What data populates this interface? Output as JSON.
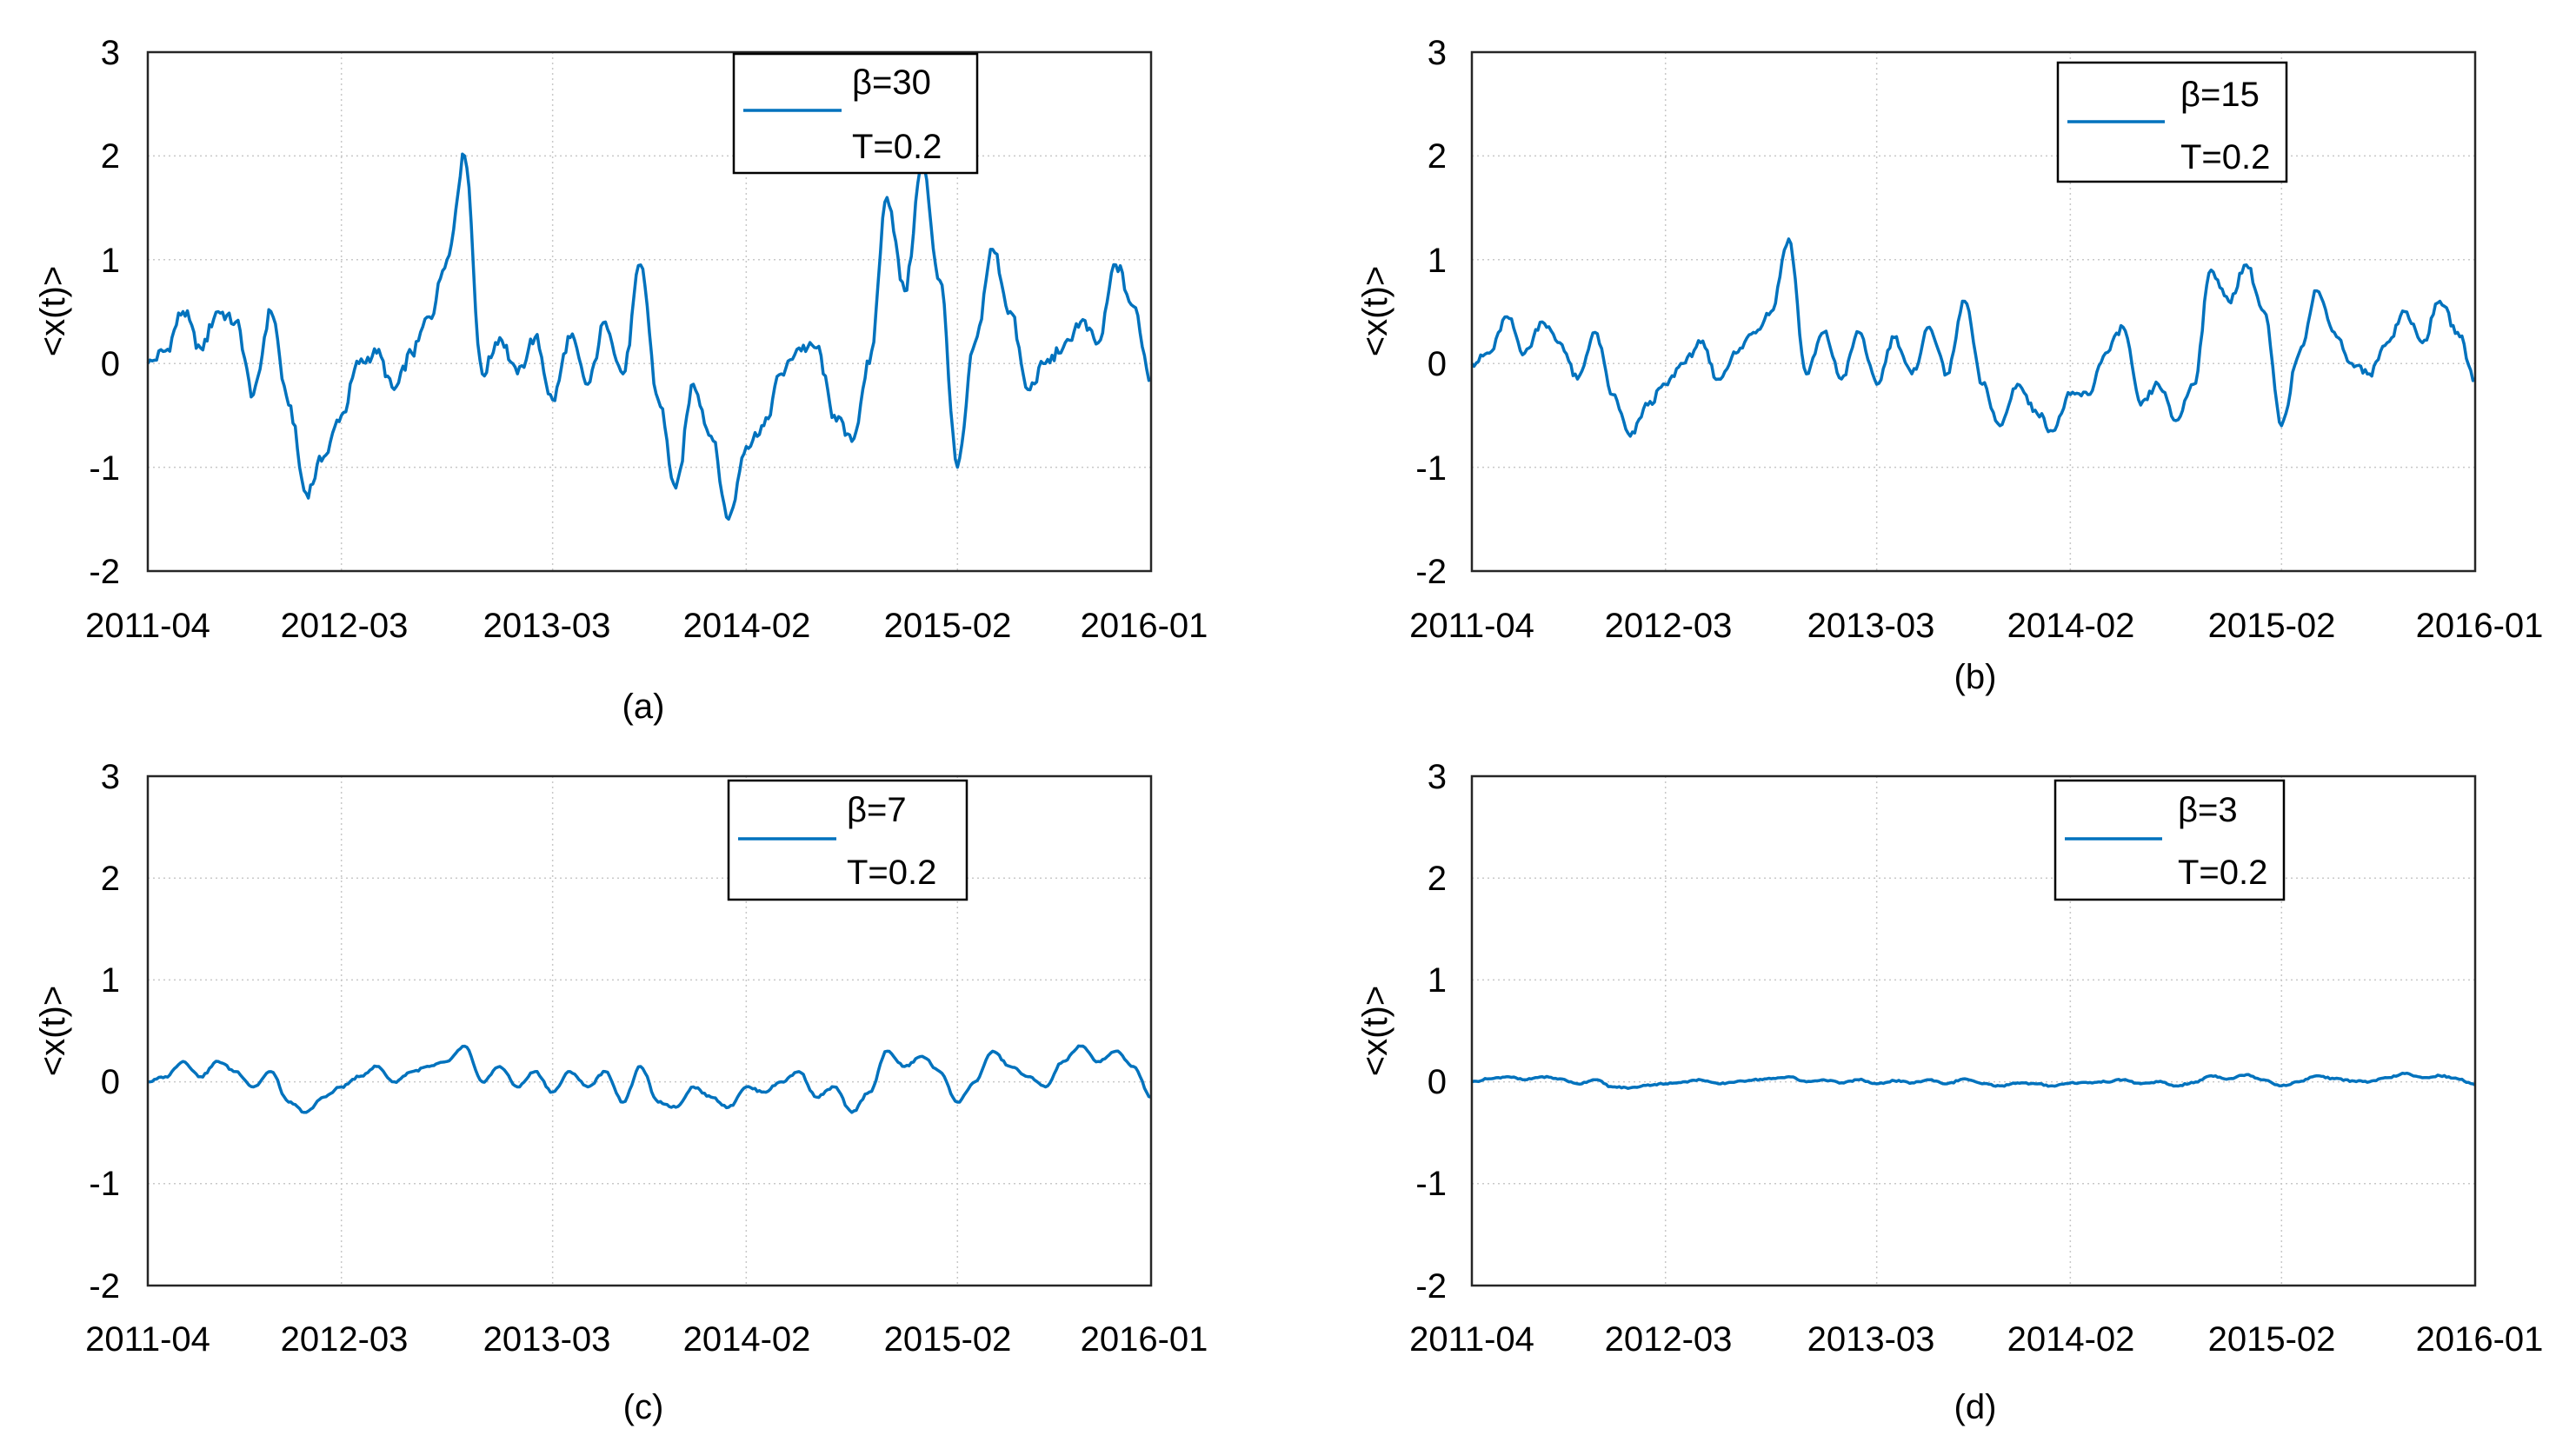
{
  "figure": {
    "x_ticks": [
      "2011-04",
      "2012-03",
      "2013-03",
      "2014-02",
      "2015-02",
      "2016-01"
    ],
    "y_ticks": [
      "3",
      "2",
      "1",
      "0",
      "-1",
      "-2"
    ]
  },
  "chart_data": [
    {
      "type": "line",
      "caption": "(a)",
      "ylabel": "<x(t)>",
      "xlabel": "",
      "xlim": [
        "2011-04",
        "2016-01"
      ],
      "ylim": [
        -2,
        3
      ],
      "grid": true,
      "legend_position": "top-right",
      "legend": [
        "β=30",
        "T=0.2"
      ],
      "series": [
        {
          "name": "β=30",
          "color": "#0072BD",
          "points": [
            [
              "2011-04",
              0.0
            ],
            [
              "2011-05",
              0.12
            ],
            [
              "2011-06",
              0.5
            ],
            [
              "2011-07",
              0.15
            ],
            [
              "2011-08",
              0.5
            ],
            [
              "2011-09",
              0.4
            ],
            [
              "2011-10",
              -0.3
            ],
            [
              "2011-11",
              0.5
            ],
            [
              "2011-12",
              -0.4
            ],
            [
              "2012-01",
              -1.25
            ],
            [
              "2012-02",
              -0.9
            ],
            [
              "2012-03",
              -0.5
            ],
            [
              "2012-04",
              0.0
            ],
            [
              "2012-05",
              0.1
            ],
            [
              "2012-06",
              -0.25
            ],
            [
              "2012-07",
              0.1
            ],
            [
              "2012-08",
              0.45
            ],
            [
              "2012-09",
              1.0
            ],
            [
              "2012-10",
              2.0
            ],
            [
              "2012-11",
              -0.1
            ],
            [
              "2012-12",
              0.25
            ],
            [
              "2013-01",
              -0.1
            ],
            [
              "2013-02",
              0.25
            ],
            [
              "2013-03",
              -0.35
            ],
            [
              "2013-04",
              0.25
            ],
            [
              "2013-05",
              -0.2
            ],
            [
              "2013-06",
              0.4
            ],
            [
              "2013-07",
              -0.1
            ],
            [
              "2013-08",
              0.95
            ],
            [
              "2013-09",
              -0.35
            ],
            [
              "2013-10",
              -1.2
            ],
            [
              "2013-11",
              -0.2
            ],
            [
              "2013-12",
              -0.7
            ],
            [
              "2014-01",
              -1.5
            ],
            [
              "2014-02",
              -0.8
            ],
            [
              "2014-03",
              -0.6
            ],
            [
              "2014-04",
              -0.1
            ],
            [
              "2014-05",
              0.15
            ],
            [
              "2014-06",
              0.15
            ],
            [
              "2014-07",
              -0.5
            ],
            [
              "2014-08",
              -0.75
            ],
            [
              "2014-09",
              0.0
            ],
            [
              "2014-10",
              1.6
            ],
            [
              "2014-11",
              0.7
            ],
            [
              "2014-12",
              1.9
            ],
            [
              "2015-01",
              0.8
            ],
            [
              "2015-02",
              -1.0
            ],
            [
              "2015-03",
              0.2
            ],
            [
              "2015-04",
              1.1
            ],
            [
              "2015-05",
              0.5
            ],
            [
              "2015-06",
              -0.25
            ],
            [
              "2015-07",
              0.0
            ],
            [
              "2015-08",
              0.15
            ],
            [
              "2015-09",
              0.4
            ],
            [
              "2015-10",
              0.2
            ],
            [
              "2015-11",
              0.95
            ],
            [
              "2015-12",
              0.55
            ],
            [
              "2016-01",
              -0.15
            ]
          ]
        }
      ]
    },
    {
      "type": "line",
      "caption": "(b)",
      "ylabel": "<x(t)>",
      "xlabel": "",
      "xlim": [
        "2011-04",
        "2016-01"
      ],
      "ylim": [
        -2,
        3
      ],
      "grid": true,
      "legend_position": "top-right",
      "legend": [
        "β=15",
        "T=0.2"
      ],
      "series": [
        {
          "name": "β=15",
          "color": "#0072BD",
          "points": [
            [
              "2011-04",
              0.0
            ],
            [
              "2011-05",
              0.1
            ],
            [
              "2011-06",
              0.45
            ],
            [
              "2011-07",
              0.1
            ],
            [
              "2011-08",
              0.4
            ],
            [
              "2011-09",
              0.2
            ],
            [
              "2011-10",
              -0.15
            ],
            [
              "2011-11",
              0.3
            ],
            [
              "2011-12",
              -0.3
            ],
            [
              "2012-01",
              -0.7
            ],
            [
              "2012-02",
              -0.4
            ],
            [
              "2012-03",
              -0.2
            ],
            [
              "2012-04",
              0.0
            ],
            [
              "2012-05",
              0.2
            ],
            [
              "2012-06",
              -0.15
            ],
            [
              "2012-07",
              0.1
            ],
            [
              "2012-08",
              0.3
            ],
            [
              "2012-09",
              0.5
            ],
            [
              "2012-10",
              1.2
            ],
            [
              "2012-11",
              -0.1
            ],
            [
              "2012-12",
              0.3
            ],
            [
              "2013-01",
              -0.15
            ],
            [
              "2013-02",
              0.3
            ],
            [
              "2013-03",
              -0.2
            ],
            [
              "2013-04",
              0.25
            ],
            [
              "2013-05",
              -0.1
            ],
            [
              "2013-06",
              0.35
            ],
            [
              "2013-07",
              -0.1
            ],
            [
              "2013-08",
              0.6
            ],
            [
              "2013-09",
              -0.2
            ],
            [
              "2013-10",
              -0.6
            ],
            [
              "2013-11",
              -0.2
            ],
            [
              "2013-12",
              -0.45
            ],
            [
              "2014-01",
              -0.65
            ],
            [
              "2014-02",
              -0.3
            ],
            [
              "2014-03",
              -0.3
            ],
            [
              "2014-04",
              0.1
            ],
            [
              "2014-05",
              0.35
            ],
            [
              "2014-06",
              -0.4
            ],
            [
              "2014-07",
              -0.2
            ],
            [
              "2014-08",
              -0.55
            ],
            [
              "2014-09",
              -0.2
            ],
            [
              "2014-10",
              0.9
            ],
            [
              "2014-11",
              0.6
            ],
            [
              "2014-12",
              0.95
            ],
            [
              "2015-01",
              0.5
            ],
            [
              "2015-02",
              -0.6
            ],
            [
              "2015-03",
              0.1
            ],
            [
              "2015-04",
              0.7
            ],
            [
              "2015-05",
              0.3
            ],
            [
              "2015-06",
              0.0
            ],
            [
              "2015-07",
              -0.1
            ],
            [
              "2015-08",
              0.2
            ],
            [
              "2015-09",
              0.5
            ],
            [
              "2015-10",
              0.2
            ],
            [
              "2015-11",
              0.6
            ],
            [
              "2015-12",
              0.3
            ],
            [
              "2016-01",
              -0.15
            ]
          ]
        }
      ]
    },
    {
      "type": "line",
      "caption": "(c)",
      "ylabel": "<x(t)>",
      "xlabel": "",
      "xlim": [
        "2011-04",
        "2016-01"
      ],
      "ylim": [
        -2,
        3
      ],
      "grid": true,
      "legend_position": "top-right",
      "legend": [
        "β=7",
        "T=0.2"
      ],
      "series": [
        {
          "name": "β=7",
          "color": "#0072BD",
          "points": [
            [
              "2011-04",
              0.0
            ],
            [
              "2011-05",
              0.05
            ],
            [
              "2011-06",
              0.2
            ],
            [
              "2011-07",
              0.05
            ],
            [
              "2011-08",
              0.2
            ],
            [
              "2011-09",
              0.1
            ],
            [
              "2011-10",
              -0.05
            ],
            [
              "2011-11",
              0.1
            ],
            [
              "2011-12",
              -0.2
            ],
            [
              "2012-01",
              -0.3
            ],
            [
              "2012-02",
              -0.15
            ],
            [
              "2012-03",
              -0.05
            ],
            [
              "2012-04",
              0.05
            ],
            [
              "2012-05",
              0.15
            ],
            [
              "2012-06",
              0.0
            ],
            [
              "2012-07",
              0.1
            ],
            [
              "2012-08",
              0.15
            ],
            [
              "2012-09",
              0.2
            ],
            [
              "2012-10",
              0.35
            ],
            [
              "2012-11",
              0.0
            ],
            [
              "2012-12",
              0.15
            ],
            [
              "2013-01",
              -0.05
            ],
            [
              "2013-02",
              0.1
            ],
            [
              "2013-03",
              -0.1
            ],
            [
              "2013-04",
              0.1
            ],
            [
              "2013-05",
              -0.05
            ],
            [
              "2013-06",
              0.1
            ],
            [
              "2013-07",
              -0.2
            ],
            [
              "2013-08",
              0.15
            ],
            [
              "2013-09",
              -0.2
            ],
            [
              "2013-10",
              -0.25
            ],
            [
              "2013-11",
              -0.05
            ],
            [
              "2013-12",
              -0.15
            ],
            [
              "2014-01",
              -0.25
            ],
            [
              "2014-02",
              -0.05
            ],
            [
              "2014-03",
              -0.1
            ],
            [
              "2014-04",
              0.0
            ],
            [
              "2014-05",
              0.1
            ],
            [
              "2014-06",
              -0.15
            ],
            [
              "2014-07",
              -0.05
            ],
            [
              "2014-08",
              -0.3
            ],
            [
              "2014-09",
              -0.1
            ],
            [
              "2014-10",
              0.3
            ],
            [
              "2014-11",
              0.15
            ],
            [
              "2014-12",
              0.25
            ],
            [
              "2015-01",
              0.1
            ],
            [
              "2015-02",
              -0.2
            ],
            [
              "2015-03",
              0.0
            ],
            [
              "2015-04",
              0.3
            ],
            [
              "2015-05",
              0.15
            ],
            [
              "2015-06",
              0.05
            ],
            [
              "2015-07",
              -0.05
            ],
            [
              "2015-08",
              0.2
            ],
            [
              "2015-09",
              0.35
            ],
            [
              "2015-10",
              0.2
            ],
            [
              "2015-11",
              0.3
            ],
            [
              "2015-12",
              0.15
            ],
            [
              "2016-01",
              -0.15
            ]
          ]
        }
      ]
    },
    {
      "type": "line",
      "caption": "(d)",
      "ylabel": "<x(t)>",
      "xlabel": "",
      "xlim": [
        "2011-04",
        "2016-01"
      ],
      "ylim": [
        -2,
        3
      ],
      "grid": true,
      "legend_position": "top-right",
      "legend": [
        "β=3",
        "T=0.2"
      ],
      "series": [
        {
          "name": "β=3",
          "color": "#0072BD",
          "points": [
            [
              "2011-04",
              0.0
            ],
            [
              "2011-05",
              0.03
            ],
            [
              "2011-06",
              0.05
            ],
            [
              "2011-07",
              0.02
            ],
            [
              "2011-08",
              0.05
            ],
            [
              "2011-09",
              0.03
            ],
            [
              "2011-10",
              -0.02
            ],
            [
              "2011-11",
              0.02
            ],
            [
              "2011-12",
              -0.05
            ],
            [
              "2012-01",
              -0.06
            ],
            [
              "2012-02",
              -0.03
            ],
            [
              "2012-03",
              -0.02
            ],
            [
              "2012-04",
              0.0
            ],
            [
              "2012-05",
              0.02
            ],
            [
              "2012-06",
              -0.02
            ],
            [
              "2012-07",
              0.0
            ],
            [
              "2012-08",
              0.02
            ],
            [
              "2012-09",
              0.03
            ],
            [
              "2012-10",
              0.05
            ],
            [
              "2012-11",
              0.0
            ],
            [
              "2012-12",
              0.02
            ],
            [
              "2013-01",
              -0.01
            ],
            [
              "2013-02",
              0.02
            ],
            [
              "2013-03",
              -0.02
            ],
            [
              "2013-04",
              0.01
            ],
            [
              "2013-05",
              -0.01
            ],
            [
              "2013-06",
              0.02
            ],
            [
              "2013-07",
              -0.02
            ],
            [
              "2013-08",
              0.03
            ],
            [
              "2013-09",
              -0.02
            ],
            [
              "2013-10",
              -0.04
            ],
            [
              "2013-11",
              -0.01
            ],
            [
              "2013-12",
              -0.02
            ],
            [
              "2014-01",
              -0.04
            ],
            [
              "2014-02",
              -0.01
            ],
            [
              "2014-03",
              -0.01
            ],
            [
              "2014-04",
              0.0
            ],
            [
              "2014-05",
              0.02
            ],
            [
              "2014-06",
              -0.02
            ],
            [
              "2014-07",
              0.0
            ],
            [
              "2014-08",
              -0.04
            ],
            [
              "2014-09",
              -0.01
            ],
            [
              "2014-10",
              0.06
            ],
            [
              "2014-11",
              0.03
            ],
            [
              "2014-12",
              0.07
            ],
            [
              "2015-01",
              0.02
            ],
            [
              "2015-02",
              -0.04
            ],
            [
              "2015-03",
              0.0
            ],
            [
              "2015-04",
              0.06
            ],
            [
              "2015-05",
              0.03
            ],
            [
              "2015-06",
              0.01
            ],
            [
              "2015-07",
              0.0
            ],
            [
              "2015-08",
              0.04
            ],
            [
              "2015-09",
              0.08
            ],
            [
              "2015-10",
              0.04
            ],
            [
              "2015-11",
              0.06
            ],
            [
              "2015-12",
              0.03
            ],
            [
              "2016-01",
              -0.03
            ]
          ]
        }
      ]
    }
  ]
}
